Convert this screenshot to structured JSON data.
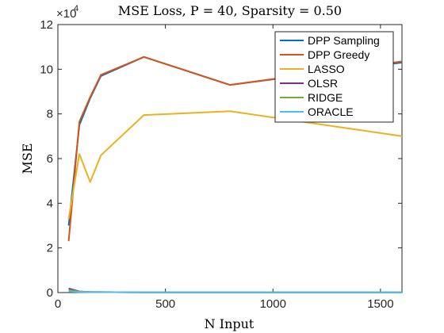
{
  "chart_data": {
    "type": "line",
    "title": "MSE Loss, P = 40, Sparsity = 0.50",
    "xlabel": "N Input",
    "ylabel": "MSE",
    "y_exponent_label": "×10",
    "y_exponent_power": "4",
    "xlim": [
      0,
      1600
    ],
    "ylim": [
      0,
      12
    ],
    "x_ticks": [
      0,
      500,
      1000,
      1500
    ],
    "y_ticks": [
      0,
      2,
      4,
      6,
      8,
      10,
      12
    ],
    "grid": false,
    "legend_position": "top-right",
    "series": [
      {
        "name": "DPP Sampling",
        "color": "#0072BD",
        "x": [
          50,
          100,
          150,
          200,
          400,
          800,
          1600
        ],
        "y": [
          3.0,
          7.5,
          8.7,
          9.7,
          10.55,
          9.3,
          10.3
        ]
      },
      {
        "name": "DPP Greedy",
        "color": "#D95319",
        "x": [
          50,
          100,
          150,
          200,
          400,
          800,
          1600
        ],
        "y": [
          2.3,
          7.65,
          8.75,
          9.75,
          10.55,
          9.3,
          10.35
        ]
      },
      {
        "name": "LASSO",
        "color": "#EDB120",
        "x": [
          50,
          100,
          150,
          200,
          400,
          800,
          1600
        ],
        "y": [
          3.3,
          6.2,
          4.95,
          6.15,
          7.95,
          8.12,
          7.0
        ]
      },
      {
        "name": "OLSR",
        "color": "#7E2F8E",
        "x": [
          50,
          100,
          150,
          200,
          400,
          800,
          1600
        ],
        "y": [
          0.18,
          0.05,
          0.03,
          0.02,
          0.01,
          0.01,
          0.01
        ]
      },
      {
        "name": "RIDGE",
        "color": "#77AC30",
        "x": [
          50,
          100,
          150,
          200,
          400,
          800,
          1600
        ],
        "y": [
          0.12,
          0.04,
          0.03,
          0.02,
          0.01,
          0.01,
          0.01
        ]
      },
      {
        "name": "ORACLE",
        "color": "#4DBEEE",
        "x": [
          50,
          100,
          150,
          200,
          400,
          800,
          1600
        ],
        "y": [
          0.05,
          0.03,
          0.02,
          0.02,
          0.01,
          0.01,
          0.01
        ]
      }
    ]
  }
}
